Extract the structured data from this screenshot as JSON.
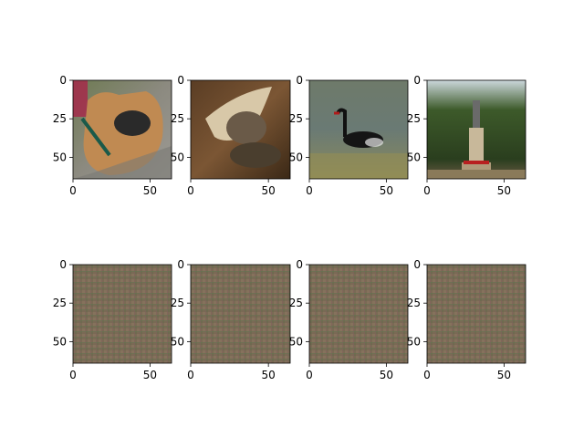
{
  "figure": {
    "rows": [
      {
        "panels": [
          {
            "id": "dog",
            "content": "photo-dog-muzzle"
          },
          {
            "id": "bird-mud",
            "content": "photo-bird-on-mud"
          },
          {
            "id": "swan",
            "content": "photo-black-swan"
          },
          {
            "id": "monument",
            "content": "photo-monument-trees"
          }
        ]
      },
      {
        "panels": [
          {
            "id": "gen1",
            "content": "generated-noise-texture"
          },
          {
            "id": "gen2",
            "content": "generated-noise-texture"
          },
          {
            "id": "gen3",
            "content": "generated-noise-texture"
          },
          {
            "id": "gen4",
            "content": "generated-noise-texture"
          }
        ]
      }
    ],
    "x_ticks": [
      "0",
      "50"
    ],
    "y_ticks": [
      "0",
      "25",
      "50"
    ],
    "x_range": [
      0,
      64
    ],
    "y_range": [
      0,
      64
    ]
  }
}
